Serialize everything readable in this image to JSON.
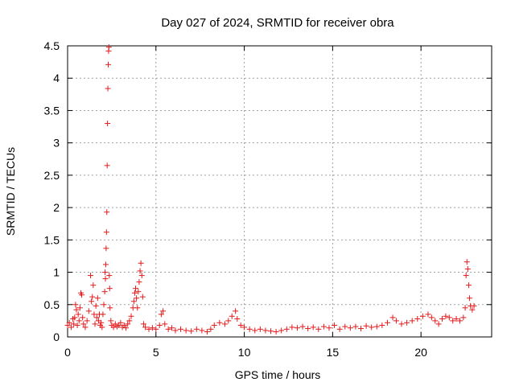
{
  "chart_data": {
    "type": "scatter",
    "title": "Day 027 of 2024, SRMTID for receiver obra",
    "xlabel": "GPS time / hours",
    "ylabel": "SRMTID / TECUs",
    "xlim": [
      0,
      24
    ],
    "ylim": [
      0,
      4.5
    ],
    "xticks": [
      0,
      5,
      10,
      15,
      20
    ],
    "xtick_labels": [
      "0",
      "5",
      "10",
      "15",
      "20"
    ],
    "yticks": [
      0,
      0.5,
      1,
      1.5,
      2,
      2.5,
      3,
      3.5,
      4,
      4.5
    ],
    "ytick_labels": [
      "0",
      "0.5",
      "1",
      "1.5",
      "2",
      "2.5",
      "3",
      "3.5",
      "4",
      "4.5"
    ],
    "grid": true,
    "marker": "plus",
    "color": "#e41a1c",
    "series": [
      {
        "name": "obra",
        "points": [
          [
            0.0,
            0.18
          ],
          [
            0.1,
            0.22
          ],
          [
            0.2,
            0.15
          ],
          [
            0.3,
            0.28
          ],
          [
            0.35,
            0.2
          ],
          [
            0.4,
            0.3
          ],
          [
            0.45,
            0.5
          ],
          [
            0.5,
            0.42
          ],
          [
            0.55,
            0.18
          ],
          [
            0.6,
            0.35
          ],
          [
            0.65,
            0.25
          ],
          [
            0.7,
            0.45
          ],
          [
            0.75,
            0.68
          ],
          [
            0.8,
            0.65
          ],
          [
            0.85,
            0.3
          ],
          [
            0.9,
            0.2
          ],
          [
            1.0,
            0.15
          ],
          [
            1.1,
            0.25
          ],
          [
            1.2,
            0.4
          ],
          [
            1.3,
            0.95
          ],
          [
            1.35,
            0.55
          ],
          [
            1.4,
            0.62
          ],
          [
            1.45,
            0.8
          ],
          [
            1.5,
            0.35
          ],
          [
            1.55,
            0.2
          ],
          [
            1.6,
            0.48
          ],
          [
            1.65,
            0.3
          ],
          [
            1.7,
            0.6
          ],
          [
            1.75,
            0.25
          ],
          [
            1.8,
            0.35
          ],
          [
            1.85,
            0.18
          ],
          [
            1.9,
            0.22
          ],
          [
            1.95,
            0.15
          ],
          [
            2.0,
            0.35
          ],
          [
            2.05,
            0.5
          ],
          [
            2.1,
            0.7
          ],
          [
            2.12,
            1.0
          ],
          [
            2.14,
            0.9
          ],
          [
            2.16,
            1.12
          ],
          [
            2.18,
            1.37
          ],
          [
            2.2,
            1.62
          ],
          [
            2.22,
            1.93
          ],
          [
            2.24,
            2.65
          ],
          [
            2.26,
            3.3
          ],
          [
            2.28,
            3.84
          ],
          [
            2.3,
            4.21
          ],
          [
            2.32,
            4.42
          ],
          [
            2.34,
            4.48
          ],
          [
            2.36,
            0.95
          ],
          [
            2.38,
            0.75
          ],
          [
            2.4,
            0.45
          ],
          [
            2.45,
            0.25
          ],
          [
            2.5,
            0.18
          ],
          [
            2.6,
            0.15
          ],
          [
            2.7,
            0.2
          ],
          [
            2.8,
            0.16
          ],
          [
            2.9,
            0.18
          ],
          [
            3.0,
            0.22
          ],
          [
            3.1,
            0.15
          ],
          [
            3.2,
            0.18
          ],
          [
            3.3,
            0.14
          ],
          [
            3.4,
            0.2
          ],
          [
            3.5,
            0.25
          ],
          [
            3.6,
            0.32
          ],
          [
            3.7,
            0.45
          ],
          [
            3.75,
            0.55
          ],
          [
            3.8,
            0.68
          ],
          [
            3.85,
            0.75
          ],
          [
            3.9,
            0.6
          ],
          [
            3.95,
            0.45
          ],
          [
            4.0,
            0.7
          ],
          [
            4.05,
            0.85
          ],
          [
            4.1,
            1.02
          ],
          [
            4.15,
            1.14
          ],
          [
            4.2,
            0.95
          ],
          [
            4.25,
            0.62
          ],
          [
            4.3,
            0.2
          ],
          [
            4.4,
            0.15
          ],
          [
            4.6,
            0.12
          ],
          [
            4.8,
            0.14
          ],
          [
            5.0,
            0.12
          ],
          [
            5.2,
            0.18
          ],
          [
            5.3,
            0.35
          ],
          [
            5.4,
            0.4
          ],
          [
            5.5,
            0.2
          ],
          [
            5.7,
            0.12
          ],
          [
            5.9,
            0.14
          ],
          [
            6.1,
            0.1
          ],
          [
            6.4,
            0.12
          ],
          [
            6.7,
            0.1
          ],
          [
            7.0,
            0.09
          ],
          [
            7.3,
            0.12
          ],
          [
            7.6,
            0.1
          ],
          [
            7.9,
            0.08
          ],
          [
            8.1,
            0.12
          ],
          [
            8.3,
            0.18
          ],
          [
            8.6,
            0.22
          ],
          [
            8.9,
            0.2
          ],
          [
            9.1,
            0.25
          ],
          [
            9.3,
            0.32
          ],
          [
            9.5,
            0.4
          ],
          [
            9.6,
            0.28
          ],
          [
            9.8,
            0.18
          ],
          [
            10.0,
            0.15
          ],
          [
            10.3,
            0.12
          ],
          [
            10.6,
            0.1
          ],
          [
            10.9,
            0.12
          ],
          [
            11.2,
            0.1
          ],
          [
            11.5,
            0.09
          ],
          [
            11.8,
            0.08
          ],
          [
            12.1,
            0.1
          ],
          [
            12.4,
            0.12
          ],
          [
            12.7,
            0.15
          ],
          [
            13.0,
            0.14
          ],
          [
            13.3,
            0.16
          ],
          [
            13.6,
            0.13
          ],
          [
            13.9,
            0.15
          ],
          [
            14.2,
            0.12
          ],
          [
            14.5,
            0.16
          ],
          [
            14.8,
            0.14
          ],
          [
            15.1,
            0.18
          ],
          [
            15.4,
            0.12
          ],
          [
            15.7,
            0.16
          ],
          [
            16.0,
            0.14
          ],
          [
            16.3,
            0.16
          ],
          [
            16.6,
            0.13
          ],
          [
            16.9,
            0.17
          ],
          [
            17.2,
            0.15
          ],
          [
            17.5,
            0.16
          ],
          [
            17.8,
            0.18
          ],
          [
            18.1,
            0.22
          ],
          [
            18.4,
            0.3
          ],
          [
            18.6,
            0.25
          ],
          [
            18.9,
            0.2
          ],
          [
            19.2,
            0.22
          ],
          [
            19.5,
            0.25
          ],
          [
            19.8,
            0.28
          ],
          [
            20.1,
            0.32
          ],
          [
            20.4,
            0.35
          ],
          [
            20.6,
            0.3
          ],
          [
            20.8,
            0.25
          ],
          [
            21.0,
            0.2
          ],
          [
            21.2,
            0.28
          ],
          [
            21.4,
            0.32
          ],
          [
            21.6,
            0.3
          ],
          [
            21.8,
            0.25
          ],
          [
            22.0,
            0.28
          ],
          [
            22.2,
            0.25
          ],
          [
            22.4,
            0.3
          ],
          [
            22.5,
            0.45
          ],
          [
            22.55,
            0.95
          ],
          [
            22.6,
            1.16
          ],
          [
            22.65,
            1.05
          ],
          [
            22.7,
            0.8
          ],
          [
            22.75,
            0.6
          ],
          [
            22.8,
            0.48
          ],
          [
            22.9,
            0.42
          ],
          [
            23.0,
            0.48
          ]
        ]
      }
    ]
  }
}
